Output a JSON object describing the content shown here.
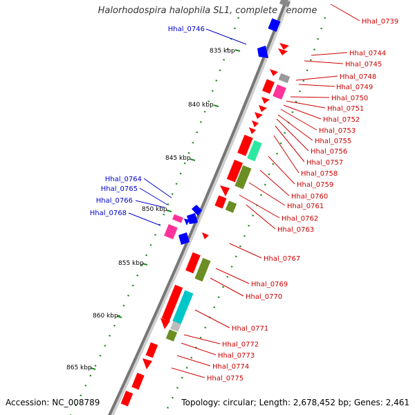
{
  "title": "Halorhodospira halophila SL1, complete genome",
  "footer": {
    "accession": "Accession: NC_008789",
    "topology": "Topology: circular; Length: 2,678,452 bp; Genes: 2,461"
  },
  "ticks": [
    "835 kbp",
    "840 kbp",
    "845 kbp",
    "850 kbp",
    "855 kbp",
    "860 kbp",
    "865 kbp"
  ],
  "colors": {
    "forward_label": "#cc0000",
    "reverse_label": "#0000cc",
    "cds": "#ff0000",
    "blue_cds": "#0000ff",
    "magenta": "#ff3399",
    "olive": "#6b8e23",
    "teal": "#00c8c8",
    "seafoam": "#2de8a0",
    "gray": "#888888",
    "backbone": "#888888",
    "gc_dots": "#228b22"
  },
  "labels_forward": [
    "Hhal_0739",
    "Hhal_0744",
    "Hhal_0745",
    "Hhal_0748",
    "Hhal_0749",
    "Hhal_0750",
    "Hhal_0751",
    "Hhal_0752",
    "Hhal_0753",
    "Hhal_0755",
    "Hhal_0756",
    "Hhal_0757",
    "Hhal_0758",
    "Hhal_0759",
    "Hhal_0760",
    "Hhal_0761",
    "Hhal_0762",
    "Hhal_0763",
    "Hhal_0767",
    "Hhal_0769",
    "Hhal_0770",
    "Hhal_0771",
    "Hhal_0772",
    "Hhal_0773",
    "Hhal_0774",
    "Hhal_0775"
  ],
  "labels_reverse": [
    "Hhal_0746",
    "Hhal_0764",
    "Hhal_0765",
    "Hhal_0766",
    "Hhal_0768"
  ]
}
